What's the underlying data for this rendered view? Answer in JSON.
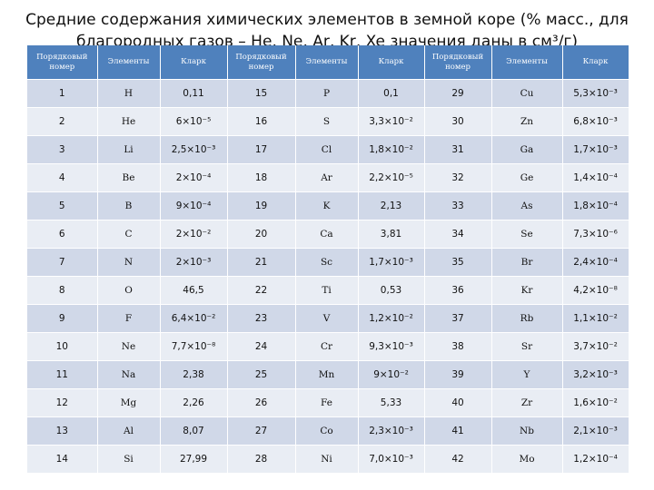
{
  "title": {
    "line1": "Средние содержания химических элементов в земной коре (% масс., для",
    "line2": "благородных газов – He, Ne, Ar, Kr, Xe значения даны в  см³/г)"
  },
  "headers": [
    "Порядковый номер",
    "Элементы",
    "Кларк",
    "Порядковый номер",
    "Элементы",
    "Кларк",
    "Порядковый номер",
    "Элементы",
    "Кларк"
  ],
  "rows": [
    [
      "1",
      "H",
      "0,11",
      "15",
      "P",
      "0,1",
      "29",
      "Cu",
      "5,3×10⁻³"
    ],
    [
      "2",
      "He",
      "6×10⁻⁵",
      "16",
      "S",
      "3,3×10⁻²",
      "30",
      "Zn",
      "6,8×10⁻³"
    ],
    [
      "3",
      "Li",
      "2,5×10⁻³",
      "17",
      "Cl",
      "1,8×10⁻²",
      "31",
      "Ga",
      "1,7×10⁻³"
    ],
    [
      "4",
      "Be",
      "2×10⁻⁴",
      "18",
      "Ar",
      "2,2×10⁻⁵",
      "32",
      "Ge",
      "1,4×10⁻⁴"
    ],
    [
      "5",
      "B",
      "9×10⁻⁴",
      "19",
      "K",
      "2,13",
      "33",
      "As",
      "1,8×10⁻⁴"
    ],
    [
      "6",
      "C",
      "2×10⁻²",
      "20",
      "Ca",
      "3,81",
      "34",
      "Se",
      "7,3×10⁻⁶"
    ],
    [
      "7",
      "N",
      "2×10⁻³",
      "21",
      "Sc",
      "1,7×10⁻³",
      "35",
      "Br",
      "2,4×10⁻⁴"
    ],
    [
      "8",
      "O",
      "46,5",
      "22",
      "Ti",
      "0,53",
      "36",
      "Kr",
      "4,2×10⁻⁸"
    ],
    [
      "9",
      "F",
      "6,4×10⁻²",
      "23",
      "V",
      "1,2×10⁻²",
      "37",
      "Rb",
      "1,1×10⁻²"
    ],
    [
      "10",
      "Ne",
      "7,7×10⁻⁸",
      "24",
      "Cr",
      "9,3×10⁻³",
      "38",
      "Sr",
      "3,7×10⁻²"
    ],
    [
      "11",
      "Na",
      "2,38",
      "25",
      "Mn",
      "9×10⁻²",
      "39",
      "Y",
      "3,2×10⁻³"
    ],
    [
      "12",
      "Mg",
      "2,26",
      "26",
      "Fe",
      "5,33",
      "40",
      "Zr",
      "1,6×10⁻²"
    ],
    [
      "13",
      "Al",
      "8,07",
      "27",
      "Co",
      "2,3×10⁻³",
      "41",
      "Nb",
      "2,1×10⁻³"
    ],
    [
      "14",
      "Si",
      "27,99",
      "28",
      "Ni",
      "7,0×10⁻³",
      "42",
      "Mo",
      "1,2×10⁻⁴"
    ]
  ],
  "colors": {
    "header_bg": "#4f81bd",
    "row_odd": "#d0d8e8",
    "row_even": "#e9edf4"
  }
}
